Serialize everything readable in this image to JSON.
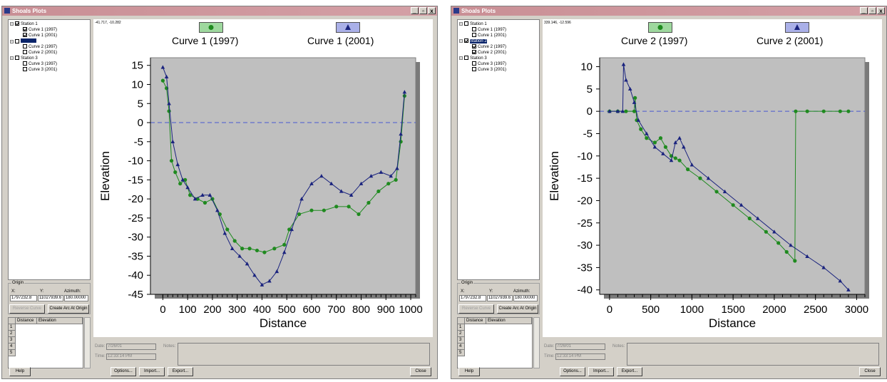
{
  "windows": [
    {
      "title": "Shoals Plots",
      "tree": [
        {
          "label": "Station 1",
          "level": 0,
          "checked": true,
          "selected": false
        },
        {
          "label": "Curve 1 (1997)",
          "level": 1,
          "checked": true,
          "selected": false
        },
        {
          "label": "Curve 1 (2001)",
          "level": 1,
          "checked": true,
          "selected": false
        },
        {
          "label": "",
          "level": 0,
          "checked": false,
          "selected": true
        },
        {
          "label": "Curve 2 (1997)",
          "level": 1,
          "checked": false,
          "selected": false
        },
        {
          "label": "Curve 2 (2001)",
          "level": 1,
          "checked": false,
          "selected": false
        },
        {
          "label": "Station 3",
          "level": 0,
          "checked": false,
          "selected": false
        },
        {
          "label": "Curve 3 (1997)",
          "level": 1,
          "checked": false,
          "selected": false
        },
        {
          "label": "Curve 3 (2001)",
          "level": 1,
          "checked": false,
          "selected": false
        }
      ],
      "origin": {
        "group_label": "Origin",
        "x_label": "X:",
        "y_label": "Y:",
        "az_label": "Azimuth:",
        "x": "1797232.8",
        "y": "11027939.6",
        "azimuth": "180.00000"
      },
      "buttons": {
        "reverse": "Reverse Curve",
        "create_arc": "Create Arc At Origin",
        "help": "Help",
        "options": "Options...",
        "import": "Import...",
        "export": "Export...",
        "close": "Close"
      },
      "table": {
        "headers": [
          "Distance",
          "Elevation"
        ],
        "rows": [
          "1",
          "2",
          "3",
          "4",
          "5"
        ]
      },
      "date": {
        "date_label": "Date:",
        "date_value": "7/26/01",
        "time_label": "Time:",
        "time_value": "12:33:14 PM",
        "notes_label": "Notes:"
      },
      "coords": "-41.717, -10.282",
      "legend": [
        {
          "label": "Curve 1 (1997)",
          "marker": "circle",
          "color": "#1f8a1f"
        },
        {
          "label": "Curve 1 (2001)",
          "marker": "triangle",
          "color": "#1a237e"
        }
      ],
      "chart_data": {
        "type": "scatter",
        "xlabel": "Distance",
        "ylabel": "Elevation",
        "xlim": [
          -50,
          1020
        ],
        "ylim": [
          -45,
          17
        ],
        "x_ticks": [
          0,
          100,
          200,
          300,
          400,
          500,
          600,
          700,
          800,
          900,
          1000
        ],
        "y_ticks": [
          15,
          10,
          5,
          0,
          -5,
          -10,
          -15,
          -20,
          -25,
          -30,
          -35,
          -40,
          -45
        ],
        "reference_line_y": 0,
        "series": [
          {
            "name": "Curve 1 (1997)",
            "color": "#1f8a1f",
            "marker": "circle",
            "points": [
              [
                0,
                11
              ],
              [
                15,
                9
              ],
              [
                25,
                3
              ],
              [
                35,
                -10
              ],
              [
                50,
                -13
              ],
              [
                70,
                -16
              ],
              [
                90,
                -15
              ],
              [
                110,
                -19
              ],
              [
                140,
                -20
              ],
              [
                170,
                -21
              ],
              [
                200,
                -20
              ],
              [
                230,
                -24
              ],
              [
                260,
                -28
              ],
              [
                290,
                -31
              ],
              [
                320,
                -33
              ],
              [
                350,
                -33
              ],
              [
                380,
                -33.5
              ],
              [
                410,
                -34
              ],
              [
                450,
                -33
              ],
              [
                490,
                -32
              ],
              [
                510,
                -28
              ],
              [
                550,
                -24
              ],
              [
                600,
                -23
              ],
              [
                650,
                -23
              ],
              [
                700,
                -22
              ],
              [
                750,
                -22
              ],
              [
                790,
                -24
              ],
              [
                830,
                -21
              ],
              [
                870,
                -18
              ],
              [
                910,
                -16
              ],
              [
                940,
                -15
              ],
              [
                960,
                -5
              ],
              [
                975,
                7
              ]
            ]
          },
          {
            "name": "Curve 1 (2001)",
            "color": "#1a237e",
            "marker": "triangle",
            "points": [
              [
                0,
                14.5
              ],
              [
                15,
                12
              ],
              [
                25,
                5
              ],
              [
                40,
                -5
              ],
              [
                60,
                -11
              ],
              [
                80,
                -15
              ],
              [
                100,
                -17
              ],
              [
                130,
                -20
              ],
              [
                160,
                -19
              ],
              [
                190,
                -19
              ],
              [
                220,
                -23
              ],
              [
                250,
                -29
              ],
              [
                280,
                -33
              ],
              [
                310,
                -35
              ],
              [
                340,
                -37
              ],
              [
                370,
                -40
              ],
              [
                400,
                -42.5
              ],
              [
                430,
                -41.5
              ],
              [
                460,
                -39
              ],
              [
                490,
                -34
              ],
              [
                520,
                -28
              ],
              [
                560,
                -20
              ],
              [
                600,
                -16
              ],
              [
                640,
                -14
              ],
              [
                680,
                -16
              ],
              [
                720,
                -18
              ],
              [
                760,
                -19
              ],
              [
                800,
                -16
              ],
              [
                840,
                -14
              ],
              [
                880,
                -13
              ],
              [
                920,
                -14
              ],
              [
                945,
                -12
              ],
              [
                960,
                -3
              ],
              [
                975,
                8
              ]
            ]
          }
        ]
      }
    },
    {
      "title": "Shoals Plots",
      "tree": [
        {
          "label": "Station 1",
          "level": 0,
          "checked": false,
          "selected": false
        },
        {
          "label": "Curve 1 (1997)",
          "level": 1,
          "checked": false,
          "selected": false
        },
        {
          "label": "Curve 1 (2001)",
          "level": 1,
          "checked": false,
          "selected": false
        },
        {
          "label": "Station 2",
          "level": 0,
          "checked": true,
          "selected": true
        },
        {
          "label": "Curve 2 (1997)",
          "level": 1,
          "checked": true,
          "selected": false
        },
        {
          "label": "Curve 2 (2001)",
          "level": 1,
          "checked": true,
          "selected": false
        },
        {
          "label": "Station 3",
          "level": 0,
          "checked": false,
          "selected": false
        },
        {
          "label": "Curve 3 (1997)",
          "level": 1,
          "checked": false,
          "selected": false
        },
        {
          "label": "Curve 3 (2001)",
          "level": 1,
          "checked": false,
          "selected": false
        }
      ],
      "origin": {
        "group_label": "Origin",
        "x_label": "X:",
        "y_label": "Y:",
        "az_label": "Azimuth:",
        "x": "1797232.8",
        "y": "11027939.6",
        "azimuth": "180.00000"
      },
      "buttons": {
        "reverse": "Reverse Curve",
        "create_arc": "Create Arc At Origin",
        "help": "Help",
        "options": "Options...",
        "import": "Import...",
        "export": "Export...",
        "close": "Close"
      },
      "table": {
        "headers": [
          "Distance",
          "Elevation"
        ],
        "rows": [
          "1",
          "2",
          "3",
          "4",
          "5"
        ]
      },
      "date": {
        "date_label": "Date:",
        "date_value": "7/26/01",
        "time_label": "Time:",
        "time_value": "12:33:14 PM",
        "notes_label": "Notes:"
      },
      "coords": "339.146, -12.596",
      "legend": [
        {
          "label": "Curve 2 (1997)",
          "marker": "circle",
          "color": "#1f8a1f"
        },
        {
          "label": "Curve 2 (2001)",
          "marker": "triangle",
          "color": "#1a237e"
        }
      ],
      "chart_data": {
        "type": "scatter",
        "xlabel": "Distance",
        "ylabel": "Elevation",
        "xlim": [
          -120,
          3100
        ],
        "ylim": [
          -41,
          12
        ],
        "x_ticks": [
          0,
          500,
          1000,
          1500,
          2000,
          2500,
          3000
        ],
        "y_ticks": [
          10,
          5,
          0,
          -5,
          -10,
          -15,
          -20,
          -25,
          -30,
          -35,
          -40
        ],
        "reference_line_y": 0,
        "series": [
          {
            "name": "Curve 2 (1997)",
            "color": "#1f8a1f",
            "marker": "circle",
            "points": [
              [
                0,
                0
              ],
              [
                100,
                0
              ],
              [
                200,
                0
              ],
              [
                300,
                0
              ],
              [
                310,
                3
              ],
              [
                330,
                -2
              ],
              [
                380,
                -4
              ],
              [
                450,
                -6
              ],
              [
                550,
                -7
              ],
              [
                620,
                -6
              ],
              [
                680,
                -8
              ],
              [
                750,
                -10
              ],
              [
                800,
                -10.5
              ],
              [
                850,
                -11
              ],
              [
                950,
                -13
              ],
              [
                1100,
                -15
              ],
              [
                1300,
                -18
              ],
              [
                1500,
                -21
              ],
              [
                1700,
                -24
              ],
              [
                1900,
                -27
              ],
              [
                2050,
                -29.5
              ],
              [
                2150,
                -31.5
              ],
              [
                2250,
                -33.5
              ],
              [
                2260,
                0
              ],
              [
                2400,
                0
              ],
              [
                2600,
                0
              ],
              [
                2800,
                0
              ],
              [
                2900,
                0
              ]
            ]
          },
          {
            "name": "Curve 2 (2001)",
            "color": "#1a237e",
            "marker": "triangle",
            "points": [
              [
                0,
                0
              ],
              [
                100,
                0
              ],
              [
                160,
                0
              ],
              [
                170,
                10.5
              ],
              [
                200,
                7
              ],
              [
                250,
                5
              ],
              [
                300,
                2
              ],
              [
                350,
                -2
              ],
              [
                450,
                -5
              ],
              [
                550,
                -8
              ],
              [
                650,
                -9.5
              ],
              [
                750,
                -11
              ],
              [
                800,
                -7
              ],
              [
                850,
                -6
              ],
              [
                900,
                -8
              ],
              [
                1000,
                -12
              ],
              [
                1200,
                -15
              ],
              [
                1400,
                -18
              ],
              [
                1600,
                -21
              ],
              [
                1800,
                -24
              ],
              [
                2000,
                -27
              ],
              [
                2200,
                -30
              ],
              [
                2400,
                -32.5
              ],
              [
                2600,
                -35
              ],
              [
                2800,
                -38
              ],
              [
                2900,
                -40
              ]
            ]
          }
        ]
      }
    }
  ]
}
